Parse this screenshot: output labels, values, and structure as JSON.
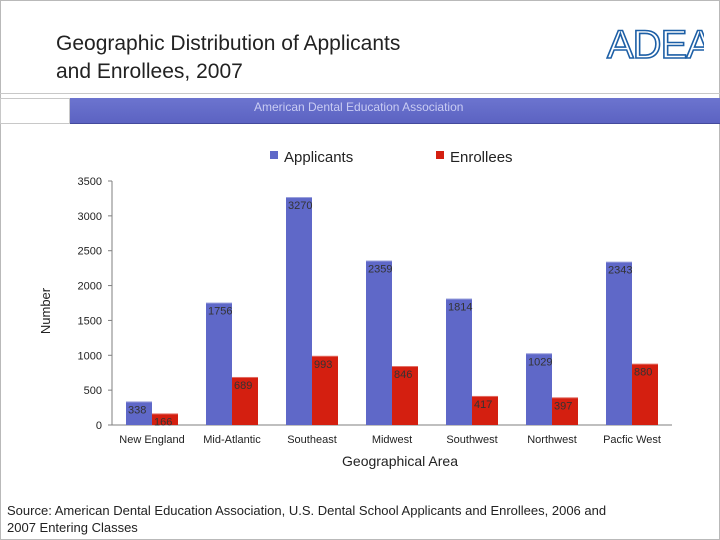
{
  "slide": {
    "title": "Geographic Distribution of Applicants\nand Enrollees, 2007",
    "logo_text": "ADEA",
    "band_text": "American Dental Education Association",
    "source": "Source: American Dental Education Association, U.S. Dental School Applicants and Enrollees, 2006 and 2007 Entering Classes"
  },
  "colors": {
    "applicants": "#5f68c8",
    "enrollees": "#d41f10",
    "band": "#6069c8",
    "logo": "#1d5fa6"
  },
  "chart_data": {
    "type": "bar",
    "title": "",
    "xlabel": "Geographical Area",
    "ylabel": "Number",
    "ylim": [
      0,
      3500
    ],
    "yticks": [
      0,
      500,
      1000,
      1500,
      2000,
      2500,
      3000,
      3500
    ],
    "categories": [
      "New England",
      "Mid-Atlantic",
      "Southeast",
      "Midwest",
      "Southwest",
      "Northwest",
      "Pacfic West"
    ],
    "series": [
      {
        "name": "Applicants",
        "values": [
          338,
          1756,
          3270,
          2359,
          1814,
          1029,
          2343
        ]
      },
      {
        "name": "Enrollees",
        "values": [
          166,
          689,
          993,
          846,
          417,
          397,
          880
        ]
      }
    ],
    "legend_position": "top",
    "grid": false
  }
}
